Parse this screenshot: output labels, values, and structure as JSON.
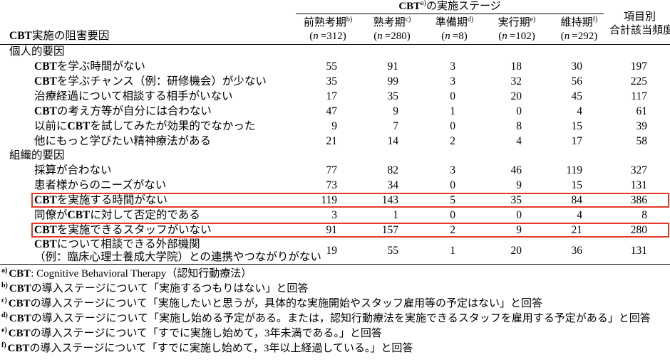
{
  "table": {
    "row_header": {
      "pre": "CBT",
      "post": "実施の阻害要因"
    },
    "stage_header": {
      "pre": "CBT",
      "sup": "a)",
      "post": "の実施ステージ"
    },
    "columns": [
      {
        "label": "前熟考期",
        "sup": "b)",
        "n": "312"
      },
      {
        "label": "熟考期",
        "sup": "c)",
        "n": "280"
      },
      {
        "label": "準備期",
        "sup": "d)",
        "n": "8"
      },
      {
        "label": "実行期",
        "sup": "e)",
        "n": "102"
      },
      {
        "label": "維持期",
        "sup": "f)",
        "n": "292"
      }
    ],
    "total_column": {
      "line1": "項目別",
      "line2": "合計該当頻度"
    },
    "highlight_color": "#e53828",
    "sections": [
      {
        "title": "個人的要因",
        "rows": [
          {
            "label": "CBTを学ぶ時間がない",
            "values": [
              55,
              91,
              3,
              18,
              30
            ],
            "total": 197
          },
          {
            "label": "CBTを学ぶチャンス（例：研修機会）が少ない",
            "values": [
              35,
              99,
              3,
              32,
              56
            ],
            "total": 225
          },
          {
            "label": "治療経過について相談する相手がいない",
            "values": [
              17,
              35,
              0,
              20,
              45
            ],
            "total": 117
          },
          {
            "label": "CBTの考え方等が自分には合わない",
            "values": [
              47,
              9,
              1,
              0,
              4
            ],
            "total": 61
          },
          {
            "label": "以前にCBTを試してみたが効果的でなかった",
            "values": [
              9,
              7,
              0,
              8,
              15
            ],
            "total": 39
          },
          {
            "label": "他にもっと学びたい精神療法がある",
            "values": [
              21,
              14,
              2,
              4,
              17
            ],
            "total": 58
          }
        ]
      },
      {
        "title": "組織的要因",
        "rows": [
          {
            "label": "採算が合わない",
            "values": [
              77,
              82,
              3,
              46,
              119
            ],
            "total": 327
          },
          {
            "label": "患者様からのニーズがない",
            "values": [
              73,
              34,
              0,
              9,
              15
            ],
            "total": 131
          },
          {
            "label": "CBTを実施する時間がない",
            "values": [
              119,
              143,
              5,
              35,
              84
            ],
            "total": 386,
            "highlight": true
          },
          {
            "label": "同僚がCBTに対して否定的である",
            "values": [
              3,
              1,
              0,
              0,
              4
            ],
            "total": 8
          },
          {
            "label": "CBTを実施できるスタッフがいない",
            "values": [
              91,
              157,
              2,
              9,
              21
            ],
            "total": 280,
            "highlight": true
          },
          {
            "label": "CBTについて相談できる外部機関",
            "label2": "（例：臨床心理士養成大学院）との連携やつながりがない",
            "values": [
              19,
              55,
              1,
              20,
              36
            ],
            "total": 131
          }
        ]
      }
    ]
  },
  "footnotes": [
    {
      "marker": "a)",
      "text": "CBT: Cognitive Behavioral Therapy（認知行動療法）"
    },
    {
      "marker": "b)",
      "text": "CBTの導入ステージについて「実施するつもりはない」と回答"
    },
    {
      "marker": "c)",
      "text": "CBTの導入ステージについて「実施したいと思うが，具体的な実施開始やスタッフ雇用等の予定はない」と回答"
    },
    {
      "marker": "d)",
      "text": "CBTの導入ステージについて「実施し始める予定がある。または，認知行動療法を実施できるスタッフを雇用する予定がある」と回答"
    },
    {
      "marker": "e)",
      "text": "CBTの導入ステージについて「すでに実施し始めて，3年未満である。」と回答"
    },
    {
      "marker": "f)",
      "text": "CBTの導入ステージについて「すでに実施し始めて，3年以上経過している。」と回答"
    }
  ]
}
